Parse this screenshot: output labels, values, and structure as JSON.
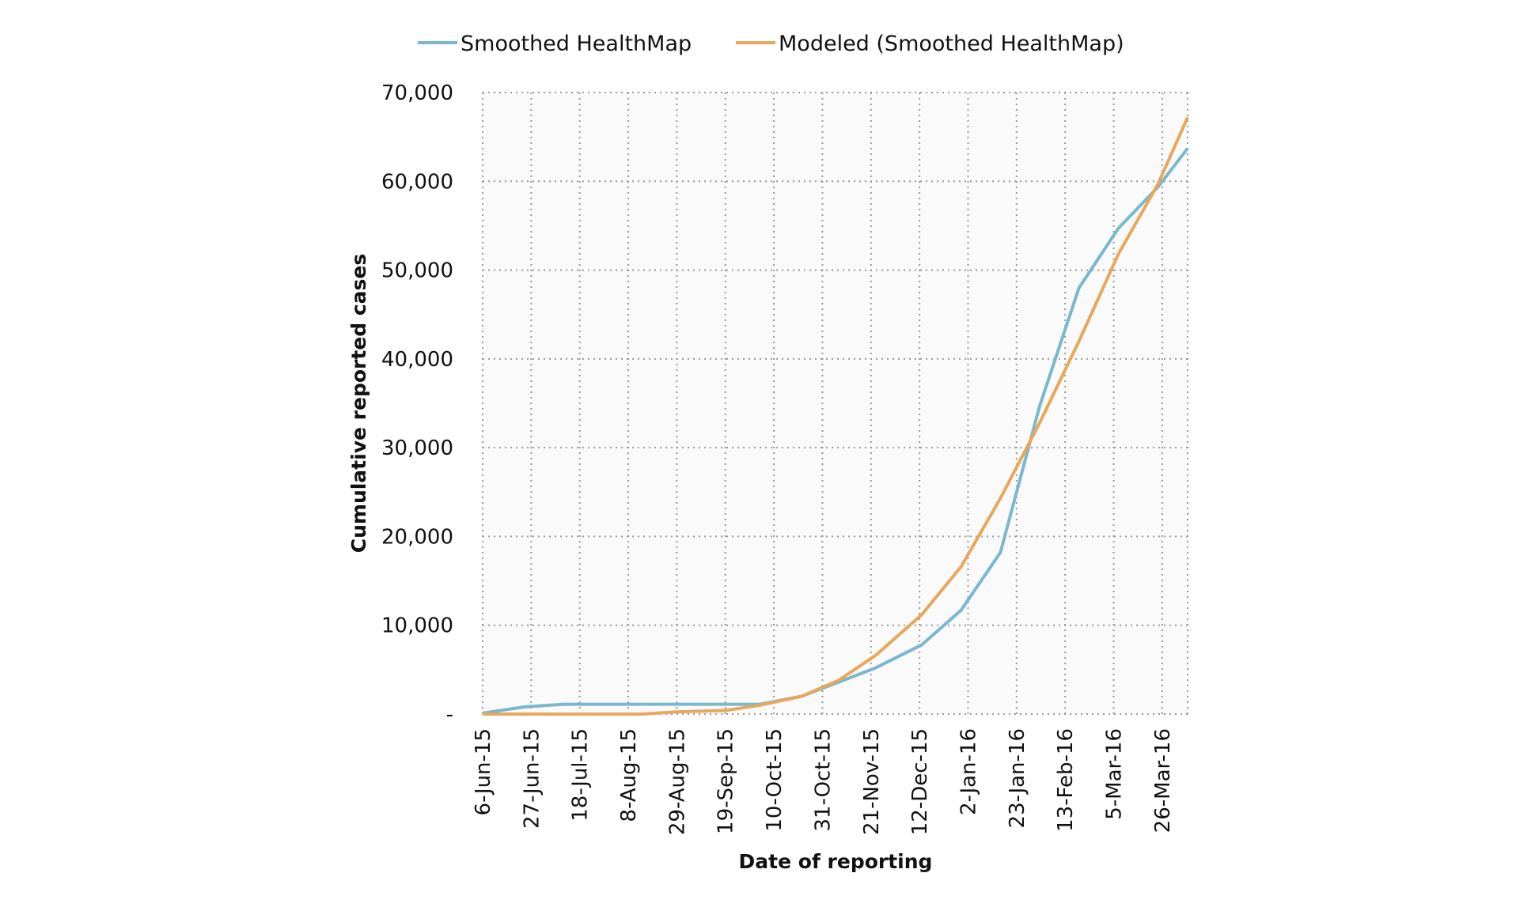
{
  "chart_data": {
    "type": "line",
    "title": "",
    "xlabel": "Date of reporting",
    "ylabel": "Cumulative reported cases",
    "ylim": [
      0,
      70000
    ],
    "xlim": [
      "2015-06-06",
      "2016-04-06"
    ],
    "yticks": [
      0,
      10000,
      20000,
      30000,
      40000,
      50000,
      60000,
      70000
    ],
    "ytick_labels": [
      "-",
      "10,000",
      "20,000",
      "30,000",
      "40,000",
      "50,000",
      "60,000",
      "70,000"
    ],
    "xticks": [
      "2015-06-06",
      "2015-06-27",
      "2015-07-18",
      "2015-08-08",
      "2015-08-29",
      "2015-09-19",
      "2015-10-10",
      "2015-10-31",
      "2015-11-21",
      "2015-12-12",
      "2016-01-02",
      "2016-01-23",
      "2016-02-13",
      "2016-03-05",
      "2016-03-26"
    ],
    "xtick_labels": [
      "6-Jun-15",
      "27-Jun-15",
      "18-Jul-15",
      "8-Aug-15",
      "29-Aug-15",
      "19-Sep-15",
      "10-Oct-15",
      "31-Oct-15",
      "21-Nov-15",
      "12-Dec-15",
      "2-Jan-16",
      "23-Jan-16",
      "13-Feb-16",
      "5-Mar-16",
      "26-Mar-16"
    ],
    "grid": true,
    "grid_style": "dotted",
    "legend_position": "top",
    "background": "#fafafa",
    "series": [
      {
        "name": "Smoothed HealthMap",
        "color": "#7ab8cf",
        "x": [
          "2015-06-06",
          "2015-06-24",
          "2015-07-11",
          "2015-10-04",
          "2015-10-22",
          "2015-11-07",
          "2015-11-23",
          "2015-12-13",
          "2015-12-30",
          "2016-01-16",
          "2016-02-02",
          "2016-02-19",
          "2016-03-07",
          "2016-03-24",
          "2016-04-06"
        ],
        "y": [
          100,
          800,
          1100,
          1100,
          2000,
          3600,
          5200,
          7800,
          11700,
          18200,
          34700,
          48000,
          54700,
          59300,
          63700
        ]
      },
      {
        "name": "Modeled (Smoothed HealthMap)",
        "color": "#e8a85c",
        "x": [
          "2015-06-06",
          "2015-08-14",
          "2015-08-29",
          "2015-09-19",
          "2015-10-04",
          "2015-10-22",
          "2015-11-07",
          "2015-11-23",
          "2015-12-13",
          "2015-12-30",
          "2016-01-16",
          "2016-02-02",
          "2016-02-19",
          "2016-03-07",
          "2016-03-24",
          "2016-04-06"
        ],
        "y": [
          0,
          0,
          250,
          400,
          1000,
          2000,
          3800,
          6600,
          11200,
          16600,
          24300,
          32800,
          42000,
          51800,
          59600,
          67200
        ]
      }
    ]
  }
}
